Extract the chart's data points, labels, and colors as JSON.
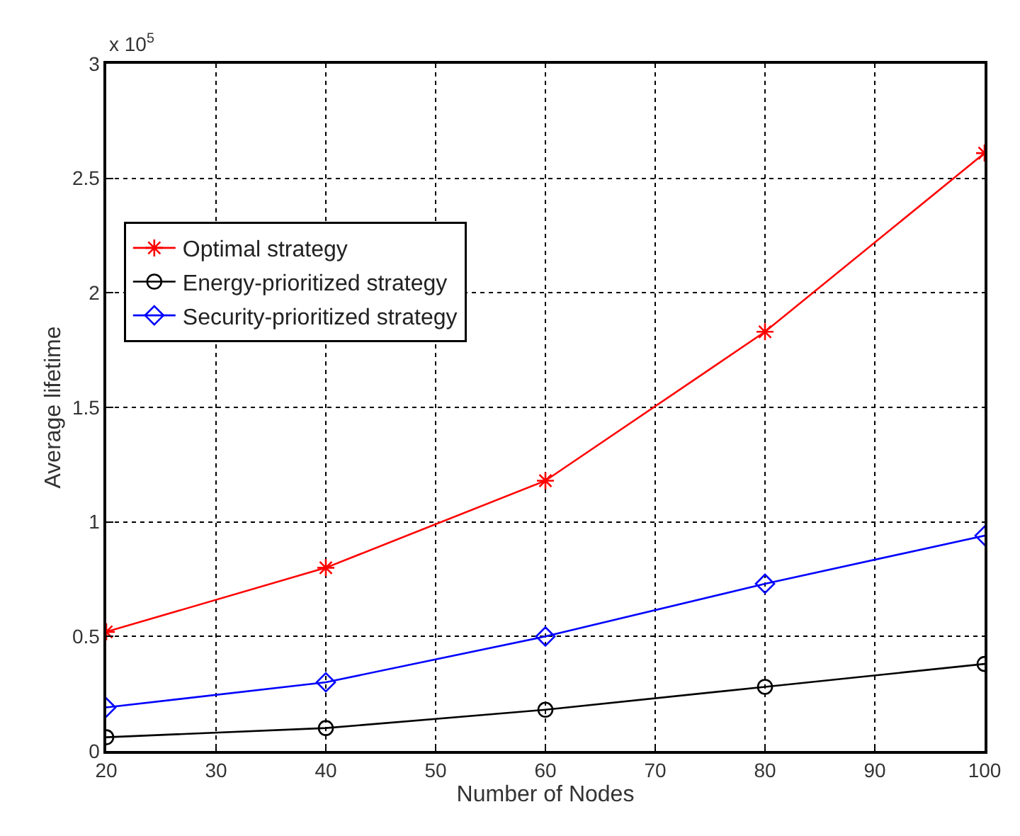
{
  "chart_data": {
    "type": "line",
    "xlabel": "Number of Nodes",
    "ylabel": "Average lifetime",
    "annotations": [
      "x 10$^{5}$"
    ],
    "x": [
      20,
      40,
      60,
      80,
      100
    ],
    "series": [
      {
        "name": "Optimal strategy",
        "color": "#ff0000",
        "marker": "cross",
        "values": [
          0.52,
          0.8,
          1.18,
          1.83,
          2.61
        ]
      },
      {
        "name": "Energy-prioritized strategy",
        "color": "#000000",
        "marker": "circle",
        "values": [
          0.06,
          0.1,
          0.18,
          0.28,
          0.38
        ]
      },
      {
        "name": "Security-prioritized strategy",
        "color": "#0000ff",
        "marker": "diamond",
        "values": [
          0.19,
          0.3,
          0.5,
          0.73,
          0.94
        ]
      }
    ],
    "xlim": [
      20,
      100
    ],
    "xticks": [
      20,
      30,
      40,
      50,
      60,
      70,
      80,
      90,
      100
    ],
    "ylim": [
      0,
      3
    ],
    "yticks": [
      0,
      0.5,
      1,
      1.5,
      2,
      2.5,
      3
    ],
    "grid": true,
    "legend": "top left",
    "line_style": "solid"
  }
}
